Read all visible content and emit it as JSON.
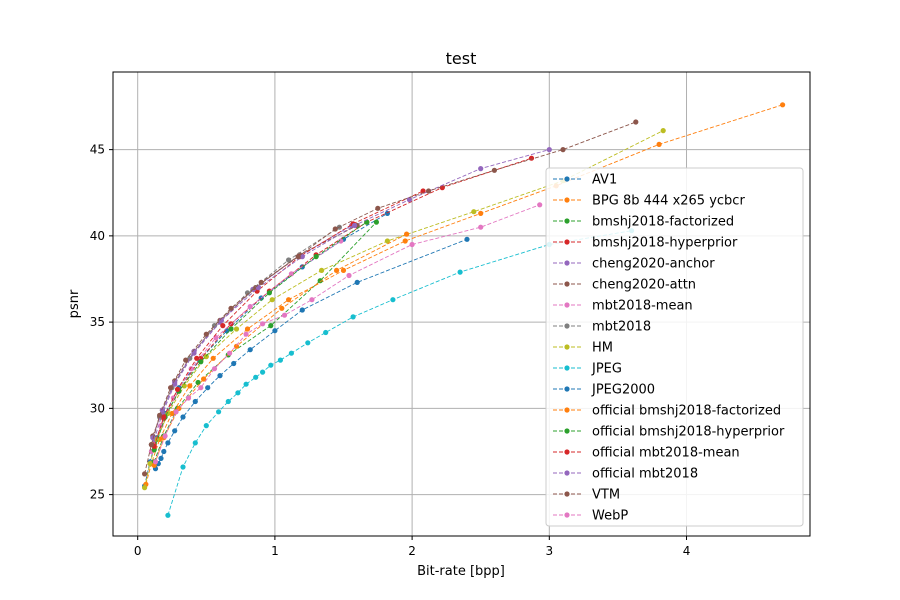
{
  "chart_data": {
    "type": "line",
    "title": "test",
    "xlabel": "Bit-rate [bpp]",
    "ylabel": "psnr",
    "xlim": [
      -0.18,
      4.9
    ],
    "ylim": [
      22.6,
      49.5
    ],
    "xticks": [
      0,
      1,
      2,
      3,
      4
    ],
    "yticks": [
      25,
      30,
      35,
      40,
      45
    ],
    "grid": true,
    "legend_position": "center-right",
    "series": [
      {
        "name": "AV1",
        "color": "#1f77b4",
        "x": [
          0.05,
          0.09,
          0.14,
          0.2,
          0.3,
          0.45,
          0.65,
          0.9,
          1.2,
          1.5,
          1.82
        ],
        "y": [
          25.5,
          26.9,
          28.3,
          29.7,
          31.2,
          32.8,
          34.5,
          36.4,
          38.2,
          39.8,
          41.3
        ]
      },
      {
        "name": "BPG 8b 444 x265 ycbcr",
        "color": "#ff7f0e",
        "x": [
          0.06,
          0.1,
          0.16,
          0.25,
          0.38,
          0.55,
          0.8,
          1.1,
          1.5,
          1.95,
          2.5,
          3.05,
          3.8,
          4.7
        ],
        "y": [
          25.6,
          26.8,
          28.2,
          29.7,
          31.3,
          32.9,
          34.6,
          36.3,
          38.0,
          39.7,
          41.3,
          42.9,
          45.3,
          47.6
        ]
      },
      {
        "name": "bmshj2018-factorized",
        "color": "#2ca02c",
        "x": [
          0.12,
          0.19,
          0.29,
          0.44,
          0.66,
          0.97,
          1.33,
          1.74
        ],
        "y": [
          26.9,
          28.4,
          30.0,
          31.5,
          33.1,
          34.8,
          37.4,
          40.8
        ]
      },
      {
        "name": "bmshj2018-hyperprior",
        "color": "#d62728",
        "x": [
          0.12,
          0.19,
          0.3,
          0.46,
          0.68,
          0.96,
          1.3,
          1.67,
          2.22,
          2.87
        ],
        "y": [
          27.9,
          29.4,
          31.0,
          32.9,
          34.9,
          36.8,
          38.9,
          40.8,
          42.8,
          44.5
        ]
      },
      {
        "name": "cheng2020-anchor",
        "color": "#9467bd",
        "x": [
          0.12,
          0.18,
          0.27,
          0.41,
          0.6,
          0.84,
          1.17,
          1.56
        ],
        "y": [
          28.2,
          29.7,
          31.4,
          33.2,
          35.0,
          36.9,
          38.8,
          40.6
        ]
      },
      {
        "name": "cheng2020-attn",
        "color": "#8c564b",
        "x": [
          0.11,
          0.18,
          0.27,
          0.41,
          0.6,
          0.86,
          1.18,
          1.6
        ],
        "y": [
          28.4,
          29.9,
          31.6,
          33.3,
          35.1,
          37.0,
          38.9,
          40.6
        ]
      },
      {
        "name": "mbt2018-mean",
        "color": "#e377c2",
        "x": [
          0.1,
          0.17,
          0.26,
          0.39,
          0.57,
          0.82,
          1.12,
          1.48
        ],
        "y": [
          27.5,
          29.0,
          30.6,
          32.3,
          34.1,
          35.9,
          37.8,
          39.7
        ]
      },
      {
        "name": "mbt2018",
        "color": "#7f7f7f",
        "x": [
          0.1,
          0.16,
          0.25,
          0.38,
          0.56,
          0.8,
          1.1,
          1.47
        ],
        "y": [
          27.9,
          29.5,
          31.2,
          32.9,
          34.8,
          36.7,
          38.6,
          40.5
        ]
      },
      {
        "name": "HM",
        "color": "#bcbd22",
        "x": [
          0.05,
          0.09,
          0.14,
          0.22,
          0.34,
          0.5,
          0.72,
          0.98,
          1.34,
          1.82,
          2.45,
          3.1,
          3.83
        ],
        "y": [
          25.4,
          26.8,
          28.2,
          29.7,
          31.3,
          33.0,
          34.6,
          36.3,
          38.0,
          39.7,
          41.4,
          43.2,
          46.1
        ]
      },
      {
        "name": "JPEG",
        "color": "#17becf",
        "x": [
          0.22,
          0.33,
          0.42,
          0.5,
          0.59,
          0.66,
          0.73,
          0.79,
          0.86,
          0.91,
          0.97,
          1.04,
          1.12,
          1.24,
          1.37,
          1.57,
          1.86,
          2.35,
          3.0,
          3.6
        ],
        "y": [
          23.8,
          26.6,
          28.0,
          29.0,
          29.8,
          30.4,
          30.9,
          31.4,
          31.8,
          32.1,
          32.5,
          32.8,
          33.2,
          33.8,
          34.4,
          35.3,
          36.3,
          37.9,
          39.5,
          40.3
        ]
      },
      {
        "name": "JPEG2000",
        "color": "#1f77b4",
        "x": [
          0.13,
          0.15,
          0.17,
          0.19,
          0.22,
          0.27,
          0.33,
          0.42,
          0.51,
          0.6,
          0.7,
          0.82,
          1.0,
          1.2,
          1.6,
          2.4
        ],
        "y": [
          26.5,
          26.8,
          27.1,
          27.5,
          28.0,
          28.7,
          29.5,
          30.4,
          31.2,
          31.9,
          32.6,
          33.4,
          34.5,
          35.7,
          37.3,
          39.8
        ]
      },
      {
        "name": "official bmshj2018-factorized",
        "color": "#ff7f0e",
        "x": [
          0.12,
          0.19,
          0.3,
          0.48,
          0.72,
          1.05,
          1.45,
          1.96
        ],
        "y": [
          26.7,
          28.3,
          30.0,
          31.7,
          33.6,
          35.8,
          38.0,
          40.1
        ]
      },
      {
        "name": "official bmshj2018-hyperprior",
        "color": "#2ca02c",
        "x": [
          0.12,
          0.2,
          0.3,
          0.46,
          0.68,
          0.96,
          1.3,
          1.67
        ],
        "y": [
          27.6,
          29.5,
          31.0,
          32.7,
          34.6,
          36.7,
          38.8,
          40.8
        ]
      },
      {
        "name": "official mbt2018-mean",
        "color": "#d62728",
        "x": [
          0.12,
          0.19,
          0.29,
          0.43,
          0.62,
          0.87,
          1.18,
          1.57,
          2.08
        ],
        "y": [
          27.8,
          29.5,
          31.1,
          32.9,
          34.8,
          36.8,
          38.8,
          40.7,
          42.6
        ]
      },
      {
        "name": "official mbt2018",
        "color": "#9467bd",
        "x": [
          0.11,
          0.18,
          0.27,
          0.41,
          0.61,
          0.88,
          1.2,
          1.58,
          1.98,
          2.5,
          3.0
        ],
        "y": [
          28.3,
          29.9,
          31.5,
          33.3,
          35.1,
          37.0,
          38.8,
          40.6,
          42.1,
          43.9,
          45.0
        ]
      },
      {
        "name": "VTM",
        "color": "#8c564b",
        "x": [
          0.05,
          0.1,
          0.16,
          0.24,
          0.35,
          0.5,
          0.68,
          0.9,
          1.17,
          1.44,
          1.75,
          2.12,
          2.6,
          3.1,
          3.63
        ],
        "y": [
          26.2,
          27.9,
          29.6,
          31.2,
          32.8,
          34.3,
          35.8,
          37.3,
          38.8,
          40.4,
          41.6,
          42.6,
          43.8,
          45.0,
          46.6
        ]
      },
      {
        "name": "WebP",
        "color": "#e377c2",
        "x": [
          0.13,
          0.2,
          0.28,
          0.37,
          0.46,
          0.56,
          0.67,
          0.79,
          0.91,
          1.07,
          1.27,
          1.54,
          2.0,
          2.5,
          2.93
        ],
        "y": [
          26.9,
          28.4,
          29.8,
          30.6,
          31.2,
          32.3,
          33.2,
          34.3,
          34.9,
          35.4,
          36.3,
          37.7,
          39.5,
          40.5,
          41.8
        ]
      }
    ]
  }
}
